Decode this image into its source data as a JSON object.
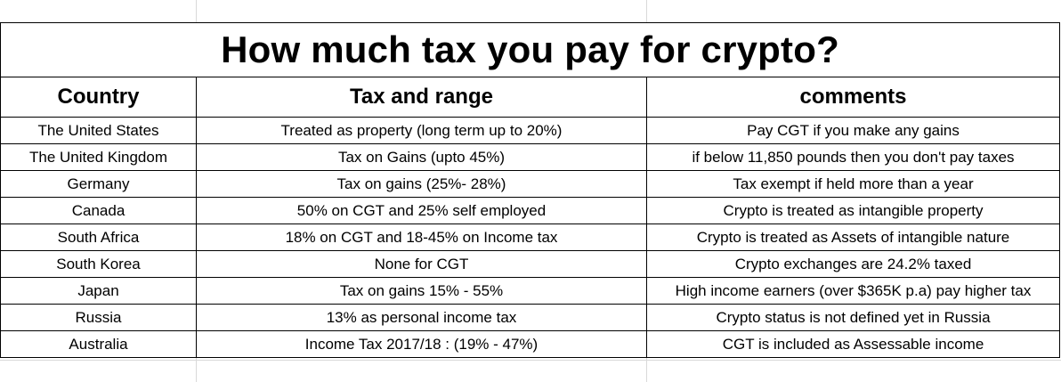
{
  "title": "How much tax you pay for crypto?",
  "columns": [
    "Country",
    "Tax and range",
    "comments"
  ],
  "rows": [
    {
      "country": "The United States",
      "tax": "Treated as property (long term up to 20%)",
      "comment": "Pay CGT if you make any gains"
    },
    {
      "country": "The United Kingdom",
      "tax": "Tax on Gains (upto 45%)",
      "comment": "if below 11,850 pounds then you don't pay taxes"
    },
    {
      "country": "Germany",
      "tax": "Tax on gains (25%- 28%)",
      "comment": "Tax exempt if held more than a year"
    },
    {
      "country": "Canada",
      "tax": "50% on CGT and 25% self employed",
      "comment": "Crypto is treated as intangible property"
    },
    {
      "country": "South Africa",
      "tax": "18% on CGT and 18-45% on Income tax",
      "comment": "Crypto is treated as Assets of intangible nature"
    },
    {
      "country": "South Korea",
      "tax": "None for CGT",
      "comment": "Crypto exchanges are 24.2% taxed"
    },
    {
      "country": "Japan",
      "tax": "Tax on gains 15% - 55%",
      "comment": "High income earners (over $365K p.a) pay higher tax"
    },
    {
      "country": "Russia",
      "tax": "13% as personal income tax",
      "comment": "Crypto status is not defined yet in Russia"
    },
    {
      "country": "Australia",
      "tax": "Income Tax 2017/18 : (19% - 47%)",
      "comment": "CGT is included as Assessable income"
    }
  ]
}
